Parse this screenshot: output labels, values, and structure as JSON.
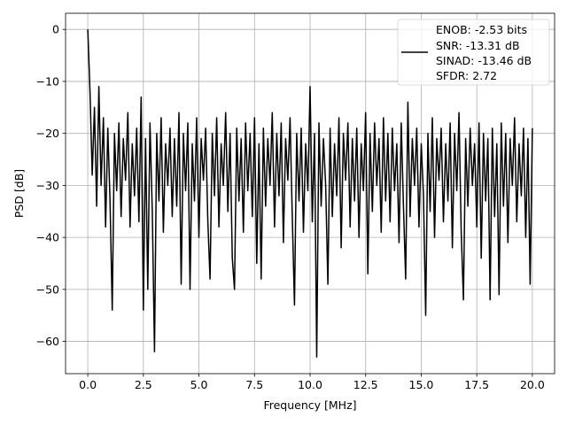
{
  "chart_data": {
    "type": "line",
    "title": "",
    "xlabel": "Frequency [MHz]",
    "ylabel": "PSD [dB]",
    "xlim": [
      -1.0,
      21.0
    ],
    "ylim": [
      -66.2,
      3.1
    ],
    "grid": true,
    "legend_placement": "upper-right",
    "line_color": "#000000",
    "grid_color": "#b0b0b0",
    "x_ticks": [
      "0.0",
      "2.5",
      "5.0",
      "7.5",
      "10.0",
      "12.5",
      "15.0",
      "17.5",
      "20.0"
    ],
    "x_tick_values": [
      0,
      2.5,
      5,
      7.5,
      10,
      12.5,
      15,
      17.5,
      20
    ],
    "y_ticks": [
      "0",
      "−10",
      "−20",
      "−30",
      "−40",
      "−50",
      "−60"
    ],
    "y_tick_values": [
      0,
      -10,
      -20,
      -30,
      -40,
      -50,
      -60
    ],
    "legend": [
      "ENOB: -2.53 bits",
      "SNR: -13.31 dB",
      "SINAD: -13.46 dB",
      "SFDR: 2.72"
    ],
    "series": [
      {
        "x": [
          0,
          0.1,
          0.2,
          0.3,
          0.4,
          0.5,
          0.6,
          0.7,
          0.8,
          0.9,
          1,
          1.1,
          1.2,
          1.3,
          1.4,
          1.5,
          1.6,
          1.7,
          1.8,
          1.9,
          2,
          2.1,
          2.2,
          2.3,
          2.4,
          2.5,
          2.6,
          2.7,
          2.8,
          2.9,
          3,
          3.1,
          3.2,
          3.3,
          3.4,
          3.5,
          3.6,
          3.7,
          3.8,
          3.9,
          4,
          4.1,
          4.2,
          4.3,
          4.4,
          4.5,
          4.6,
          4.7,
          4.8,
          4.9,
          5,
          5.1,
          5.2,
          5.3,
          5.4,
          5.5,
          5.6,
          5.7,
          5.8,
          5.9,
          6,
          6.1,
          6.2,
          6.3,
          6.4,
          6.5,
          6.6,
          6.7,
          6.8,
          6.9,
          7,
          7.1,
          7.2,
          7.3,
          7.4,
          7.5,
          7.6,
          7.7,
          7.8,
          7.9,
          8,
          8.1,
          8.2,
          8.3,
          8.4,
          8.5,
          8.6,
          8.7,
          8.8,
          8.9,
          9,
          9.1,
          9.2,
          9.3,
          9.4,
          9.5,
          9.6,
          9.7,
          9.8,
          9.9,
          10,
          10.1,
          10.2,
          10.3,
          10.4,
          10.5,
          10.6,
          10.7,
          10.8,
          10.9,
          11,
          11.1,
          11.2,
          11.3,
          11.4,
          11.5,
          11.6,
          11.7,
          11.8,
          11.9,
          12,
          12.1,
          12.2,
          12.3,
          12.4,
          12.5,
          12.6,
          12.7,
          12.8,
          12.9,
          13,
          13.1,
          13.2,
          13.3,
          13.4,
          13.5,
          13.6,
          13.7,
          13.8,
          13.9,
          14,
          14.1,
          14.2,
          14.3,
          14.4,
          14.5,
          14.6,
          14.7,
          14.8,
          14.9,
          15,
          15.1,
          15.2,
          15.3,
          15.4,
          15.5,
          15.6,
          15.7,
          15.8,
          15.9,
          16,
          16.1,
          16.2,
          16.3,
          16.4,
          16.5,
          16.6,
          16.7,
          16.8,
          16.9,
          17,
          17.1,
          17.2,
          17.3,
          17.4,
          17.5,
          17.6,
          17.7,
          17.8,
          17.9,
          18,
          18.1,
          18.2,
          18.3,
          18.4,
          18.5,
          18.6,
          18.7,
          18.8,
          18.9,
          19,
          19.1,
          19.2,
          19.3,
          19.4,
          19.5,
          19.6,
          19.7,
          19.8,
          19.9,
          20
        ],
        "y": [
          0,
          -12,
          -28,
          -15,
          -34,
          -11,
          -30,
          -17,
          -38,
          -19,
          -33,
          -54,
          -20,
          -31,
          -18,
          -36,
          -21,
          -29,
          -16,
          -38,
          -22,
          -32,
          -19,
          -37,
          -13,
          -54,
          -21,
          -50,
          -18,
          -35,
          -62,
          -20,
          -33,
          -17,
          -39,
          -22,
          -30,
          -19,
          -36,
          -21,
          -34,
          -16,
          -49,
          -20,
          -31,
          -18,
          -50,
          -22,
          -33,
          -17,
          -40,
          -21,
          -29,
          -19,
          -37,
          -48,
          -20,
          -32,
          -17,
          -38,
          -22,
          -30,
          -16,
          -35,
          -20,
          -44,
          -50,
          -19,
          -33,
          -21,
          -39,
          -18,
          -31,
          -20,
          -36,
          -17,
          -45,
          -22,
          -48,
          -19,
          -34,
          -21,
          -30,
          -16,
          -38,
          -20,
          -32,
          -18,
          -41,
          -21,
          -29,
          -17,
          -36,
          -53,
          -20,
          -33,
          -19,
          -39,
          -22,
          -31,
          -11,
          -37,
          -20,
          -63,
          -18,
          -34,
          -21,
          -30,
          -49,
          -19,
          -36,
          -22,
          -32,
          -17,
          -42,
          -20,
          -29,
          -18,
          -38,
          -21,
          -33,
          -19,
          -40,
          -22,
          -31,
          -16,
          -47,
          -20,
          -35,
          -18,
          -30,
          -21,
          -39,
          -17,
          -33,
          -20,
          -37,
          -19,
          -31,
          -22,
          -41,
          -18,
          -34,
          -48,
          -14,
          -36,
          -21,
          -30,
          -19,
          -38,
          -22,
          -32,
          -55,
          -20,
          -35,
          -17,
          -40,
          -21,
          -29,
          -19,
          -37,
          -22,
          -33,
          -18,
          -42,
          -20,
          -31,
          -16,
          -39,
          -52,
          -21,
          -34,
          -19,
          -30,
          -22,
          -38,
          -18,
          -44,
          -20,
          -33,
          -21,
          -52,
          -19,
          -36,
          -22,
          -51,
          -18,
          -34,
          -20,
          -41,
          -21,
          -30,
          -17,
          -37,
          -22,
          -32,
          -19,
          -40,
          -21,
          -49,
          -19
        ]
      }
    ]
  }
}
